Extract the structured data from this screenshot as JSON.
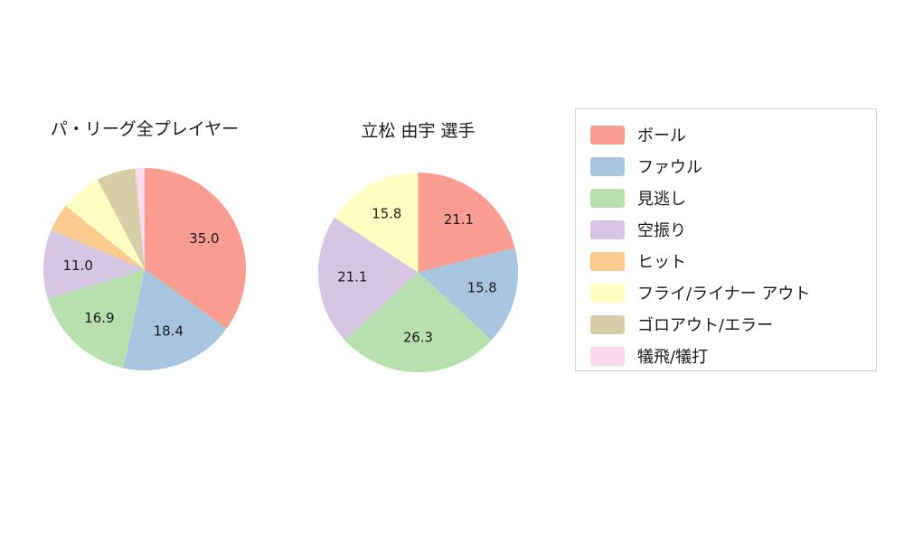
{
  "figure": {
    "background": "#ffffff",
    "text_color": "#1a1a1a"
  },
  "chart_data": [
    {
      "type": "pie",
      "title": "パ・リーグ全プレイヤー",
      "direction": "clockwise",
      "start_angle": "top",
      "labels": [
        "ボール",
        "ファウル",
        "見逃し",
        "空振り",
        "ヒット",
        "フライ/ライナー アウト",
        "ゴロアウト/エラー",
        "犠飛/犠打"
      ],
      "values": [
        35.0,
        18.4,
        16.9,
        11.0,
        4.5,
        6.5,
        6.2,
        1.5
      ],
      "value_labels": [
        "35.0",
        "18.4",
        "16.9",
        "11.0",
        "",
        "",
        "",
        ""
      ],
      "colors": [
        "#f99d93",
        "#a7c5de",
        "#b7e0ae",
        "#d5c5e2",
        "#fbca8e",
        "#ffffc4",
        "#d7cda9",
        "#fbd9ec"
      ]
    },
    {
      "type": "pie",
      "title": "立松 由宇  選手",
      "direction": "clockwise",
      "start_angle": "top",
      "labels": [
        "ボール",
        "ファウル",
        "見逃し",
        "空振り",
        "フライ/ライナー アウト"
      ],
      "values": [
        21.1,
        15.8,
        26.3,
        21.1,
        15.8
      ],
      "value_labels": [
        "21.1",
        "15.8",
        "26.3",
        "21.1",
        "15.8"
      ],
      "colors": [
        "#f99d93",
        "#a7c5de",
        "#b7e0ae",
        "#d5c5e2",
        "#ffffc4"
      ]
    }
  ],
  "legend": {
    "items": [
      {
        "label": "ボール",
        "color": "#f99d93"
      },
      {
        "label": "ファウル",
        "color": "#a7c5de"
      },
      {
        "label": "見逃し",
        "color": "#b7e0ae"
      },
      {
        "label": "空振り",
        "color": "#d5c5e2"
      },
      {
        "label": "ヒット",
        "color": "#fbca8e"
      },
      {
        "label": "フライ/ライナー アウト",
        "color": "#ffffc4"
      },
      {
        "label": "ゴロアウト/エラー",
        "color": "#d7cda9"
      },
      {
        "label": "犠飛/犠打",
        "color": "#fbd9ec"
      }
    ]
  }
}
